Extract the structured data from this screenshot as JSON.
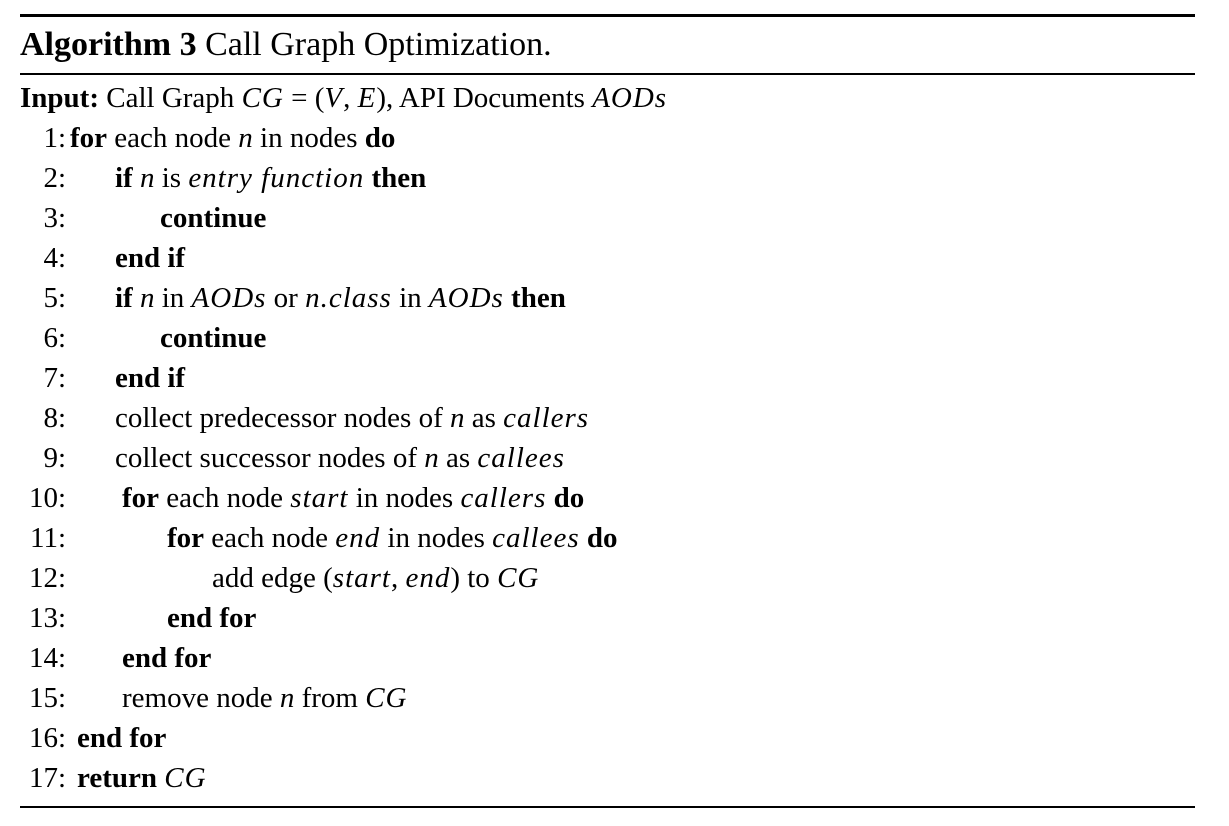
{
  "algorithm": {
    "label": "Algorithm 3",
    "title": "Call Graph Optimization.",
    "input_label": "Input:",
    "input_parts": [
      {
        "t": "Call Graph ",
        "s": "r"
      },
      {
        "t": "CG",
        "s": "m"
      },
      {
        "t": " = (",
        "s": "r"
      },
      {
        "t": "V",
        "s": "m"
      },
      {
        "t": ", ",
        "s": "r"
      },
      {
        "t": "E",
        "s": "m"
      },
      {
        "t": "), API Documents ",
        "s": "r"
      },
      {
        "t": "AODs",
        "s": "m"
      }
    ]
  },
  "lines": [
    {
      "num": "1:",
      "indent": 0,
      "parts": [
        {
          "t": "for",
          "s": "b"
        },
        {
          "t": " each node ",
          "s": "r"
        },
        {
          "t": "n",
          "s": "i"
        },
        {
          "t": " in nodes ",
          "s": "r"
        },
        {
          "t": "do",
          "s": "b"
        }
      ]
    },
    {
      "num": "2:",
      "indent": 1,
      "parts": [
        {
          "t": "if",
          "s": "b"
        },
        {
          "t": " ",
          "s": "r"
        },
        {
          "t": "n",
          "s": "i"
        },
        {
          "t": " is ",
          "s": "r"
        },
        {
          "t": "entry function",
          "s": "m"
        },
        {
          "t": " ",
          "s": "r"
        },
        {
          "t": "then",
          "s": "b"
        }
      ]
    },
    {
      "num": "3:",
      "indent": 2,
      "parts": [
        {
          "t": "continue",
          "s": "b"
        }
      ]
    },
    {
      "num": "4:",
      "indent": 1,
      "parts": [
        {
          "t": "end if",
          "s": "b"
        }
      ]
    },
    {
      "num": "5:",
      "indent": 1,
      "parts": [
        {
          "t": "if",
          "s": "b"
        },
        {
          "t": " ",
          "s": "r"
        },
        {
          "t": "n",
          "s": "i"
        },
        {
          "t": " in ",
          "s": "r"
        },
        {
          "t": "AODs",
          "s": "m"
        },
        {
          "t": " or ",
          "s": "r"
        },
        {
          "t": "n.class",
          "s": "m"
        },
        {
          "t": " in ",
          "s": "r"
        },
        {
          "t": "AODs",
          "s": "m"
        },
        {
          "t": " ",
          "s": "r"
        },
        {
          "t": "then",
          "s": "b"
        }
      ]
    },
    {
      "num": "6:",
      "indent": 2,
      "parts": [
        {
          "t": "continue",
          "s": "b"
        }
      ]
    },
    {
      "num": "7:",
      "indent": 1,
      "parts": [
        {
          "t": "end if",
          "s": "b"
        }
      ]
    },
    {
      "num": "8:",
      "indent": 1,
      "parts": [
        {
          "t": "collect predecessor nodes of ",
          "s": "r"
        },
        {
          "t": "n",
          "s": "i"
        },
        {
          "t": " as ",
          "s": "r"
        },
        {
          "t": "callers",
          "s": "m"
        }
      ]
    },
    {
      "num": "9:",
      "indent": 1,
      "parts": [
        {
          "t": "collect successor nodes of ",
          "s": "r"
        },
        {
          "t": "n",
          "s": "i"
        },
        {
          "t": " as ",
          "s": "r"
        },
        {
          "t": "callees",
          "s": "m"
        }
      ]
    },
    {
      "num": "10:",
      "indent": 1,
      "parts": [
        {
          "t": "for",
          "s": "b"
        },
        {
          "t": " each node ",
          "s": "r"
        },
        {
          "t": "start",
          "s": "m"
        },
        {
          "t": " in nodes ",
          "s": "r"
        },
        {
          "t": "callers",
          "s": "m"
        },
        {
          "t": " ",
          "s": "r"
        },
        {
          "t": "do",
          "s": "b"
        }
      ]
    },
    {
      "num": "11:",
      "indent": 2,
      "parts": [
        {
          "t": "for",
          "s": "b"
        },
        {
          "t": " each node ",
          "s": "r"
        },
        {
          "t": "end",
          "s": "m"
        },
        {
          "t": " in nodes ",
          "s": "r"
        },
        {
          "t": "callees",
          "s": "m"
        },
        {
          "t": " ",
          "s": "r"
        },
        {
          "t": "do",
          "s": "b"
        }
      ]
    },
    {
      "num": "12:",
      "indent": 3,
      "parts": [
        {
          "t": "add edge (",
          "s": "r"
        },
        {
          "t": "start",
          "s": "m"
        },
        {
          "t": ", ",
          "s": "r"
        },
        {
          "t": "end",
          "s": "m"
        },
        {
          "t": ") to ",
          "s": "r"
        },
        {
          "t": "CG",
          "s": "m"
        }
      ]
    },
    {
      "num": "13:",
      "indent": 2,
      "parts": [
        {
          "t": "end for",
          "s": "b"
        }
      ]
    },
    {
      "num": "14:",
      "indent": 1,
      "parts": [
        {
          "t": "end for",
          "s": "b"
        }
      ]
    },
    {
      "num": "15:",
      "indent": 1,
      "parts": [
        {
          "t": "remove node ",
          "s": "r"
        },
        {
          "t": "n",
          "s": "i"
        },
        {
          "t": " from ",
          "s": "r"
        },
        {
          "t": "CG",
          "s": "m"
        }
      ]
    },
    {
      "num": "16:",
      "indent": 0,
      "parts": [
        {
          "t": "end for",
          "s": "b"
        }
      ]
    },
    {
      "num": "17:",
      "indent": 0,
      "parts": [
        {
          "t": "return",
          "s": "b"
        },
        {
          "t": " ",
          "s": "r"
        },
        {
          "t": "CG",
          "s": "m"
        }
      ]
    }
  ]
}
